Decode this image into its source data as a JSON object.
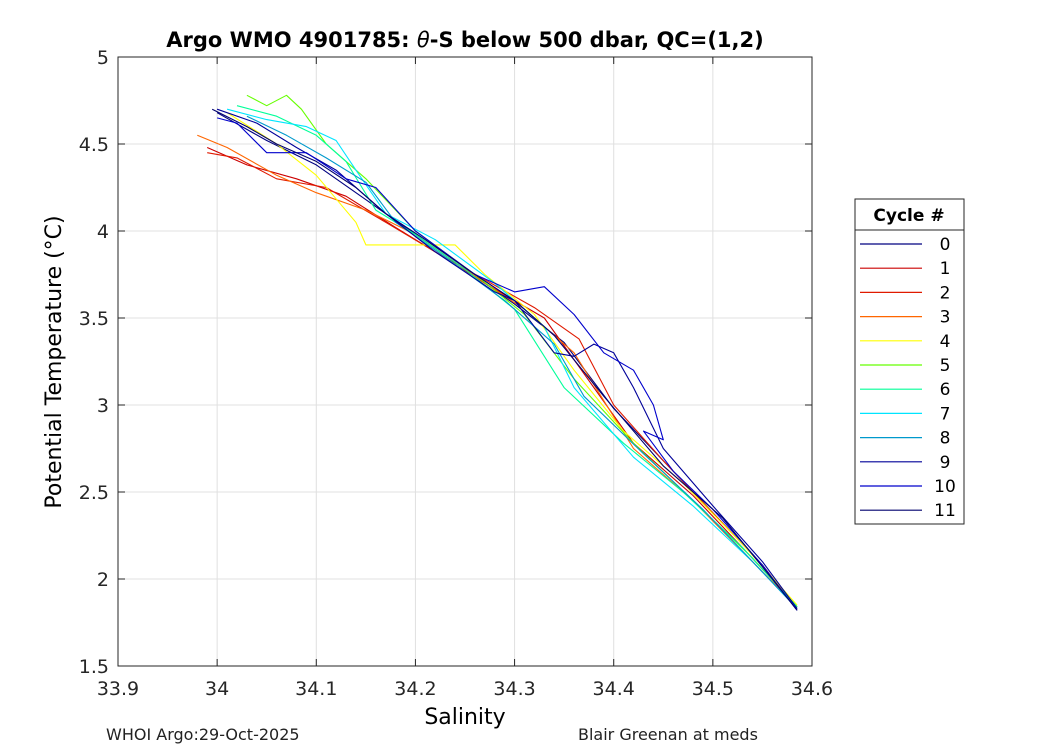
{
  "chart_data": {
    "type": "line",
    "title": "Argo WMO 4901785: θ-S below 500 dbar,  QC=(1,2)",
    "xlabel": "Salinity",
    "ylabel": "Potential Temperature (°C)",
    "xlim": [
      33.9,
      34.6
    ],
    "ylim": [
      1.5,
      5.0
    ],
    "xticks": [
      33.9,
      34.0,
      34.1,
      34.2,
      34.3,
      34.4,
      34.5,
      34.6
    ],
    "xtick_labels": [
      "33.9",
      "34",
      "34.1",
      "34.2",
      "34.3",
      "34.4",
      "34.5",
      "34.6"
    ],
    "yticks": [
      1.5,
      2.0,
      2.5,
      3.0,
      3.5,
      4.0,
      4.5,
      5.0
    ],
    "ytick_labels": [
      "1.5",
      "2",
      "2.5",
      "3",
      "3.5",
      "4",
      "4.5",
      "5"
    ],
    "grid": true,
    "legend": {
      "title": "Cycle #",
      "position": "right"
    },
    "series": [
      {
        "name": "0",
        "color": "#000080",
        "x": [
          34.0,
          34.05,
          34.1,
          34.15,
          34.2,
          34.25,
          34.3,
          34.35,
          34.4,
          34.45,
          34.5,
          34.55,
          34.585
        ],
        "y": [
          4.68,
          4.52,
          4.38,
          4.18,
          3.98,
          3.78,
          3.58,
          3.36,
          2.98,
          2.68,
          2.38,
          2.08,
          1.82
        ]
      },
      {
        "name": "1",
        "color": "#cc0000",
        "x": [
          33.99,
          34.03,
          34.08,
          34.13,
          34.18,
          34.22,
          34.27,
          34.33,
          34.37,
          34.42,
          34.48,
          34.53,
          34.585
        ],
        "y": [
          4.48,
          4.38,
          4.3,
          4.2,
          4.02,
          3.88,
          3.7,
          3.5,
          3.18,
          2.78,
          2.48,
          2.18,
          1.84
        ]
      },
      {
        "name": "2",
        "color": "#e01a00",
        "x": [
          33.99,
          34.02,
          34.06,
          34.11,
          34.17,
          34.22,
          34.27,
          34.32,
          34.365,
          34.4,
          34.45,
          34.5,
          34.55,
          34.585
        ],
        "y": [
          4.45,
          4.42,
          4.3,
          4.25,
          4.05,
          3.88,
          3.72,
          3.56,
          3.38,
          3.0,
          2.68,
          2.38,
          2.08,
          1.83
        ]
      },
      {
        "name": "3",
        "color": "#ff6600",
        "x": [
          33.98,
          34.01,
          34.06,
          34.1,
          34.15,
          34.2,
          34.26,
          34.31,
          34.36,
          34.42,
          34.48,
          34.54,
          34.585
        ],
        "y": [
          4.55,
          4.48,
          4.32,
          4.22,
          4.12,
          3.98,
          3.74,
          3.55,
          3.3,
          2.75,
          2.45,
          2.1,
          1.84
        ]
      },
      {
        "name": "4",
        "color": "#ffff00",
        "x": [
          34.01,
          34.06,
          34.1,
          34.14,
          34.15,
          34.2,
          34.24,
          34.27,
          34.32,
          34.36,
          34.41,
          34.47,
          34.53,
          34.585
        ],
        "y": [
          4.68,
          4.5,
          4.32,
          4.05,
          3.92,
          3.92,
          3.92,
          3.75,
          3.52,
          3.2,
          2.85,
          2.55,
          2.2,
          1.85
        ]
      },
      {
        "name": "5",
        "color": "#66ff00",
        "x": [
          34.03,
          34.05,
          34.07,
          34.085,
          34.11,
          34.15,
          34.2,
          34.26,
          34.31,
          34.36,
          34.42,
          34.48,
          34.54,
          34.585
        ],
        "y": [
          4.78,
          4.72,
          4.78,
          4.7,
          4.5,
          4.3,
          4.0,
          3.75,
          3.52,
          3.15,
          2.78,
          2.45,
          2.12,
          1.84
        ]
      },
      {
        "name": "6",
        "color": "#00ff99",
        "x": [
          34.02,
          34.06,
          34.1,
          34.13,
          34.16,
          34.2,
          34.25,
          34.3,
          34.35,
          34.41,
          34.47,
          34.53,
          34.585
        ],
        "y": [
          4.72,
          4.66,
          4.55,
          4.4,
          4.12,
          3.98,
          3.78,
          3.55,
          3.1,
          2.78,
          2.5,
          2.18,
          1.84
        ]
      },
      {
        "name": "7",
        "color": "#00e5ff",
        "x": [
          34.01,
          34.05,
          34.09,
          34.12,
          34.14,
          34.17,
          34.22,
          34.28,
          34.33,
          34.36,
          34.42,
          34.48,
          34.54,
          34.585
        ],
        "y": [
          4.7,
          4.64,
          4.6,
          4.52,
          4.35,
          4.1,
          3.95,
          3.7,
          3.45,
          3.1,
          2.7,
          2.42,
          2.1,
          1.83
        ]
      },
      {
        "name": "8",
        "color": "#0099cc",
        "x": [
          34.03,
          34.07,
          34.11,
          34.15,
          34.18,
          34.23,
          34.29,
          34.34,
          34.37,
          34.43,
          34.49,
          34.54,
          34.585
        ],
        "y": [
          4.66,
          4.55,
          4.42,
          4.28,
          4.05,
          3.85,
          3.6,
          3.35,
          3.05,
          2.72,
          2.4,
          2.1,
          1.83
        ]
      },
      {
        "name": "9",
        "color": "#000099",
        "x": [
          34.0,
          34.04,
          34.08,
          34.12,
          34.17,
          34.22,
          34.28,
          34.3,
          34.32,
          34.34,
          34.36,
          34.38,
          34.4,
          34.42,
          34.45,
          34.5,
          34.55,
          34.585
        ],
        "y": [
          4.7,
          4.62,
          4.48,
          4.35,
          4.1,
          3.88,
          3.65,
          3.6,
          3.45,
          3.3,
          3.28,
          3.35,
          3.3,
          3.1,
          2.75,
          2.42,
          2.1,
          1.83
        ]
      },
      {
        "name": "10",
        "color": "#0000cc",
        "x": [
          34.0,
          34.02,
          34.05,
          34.09,
          34.13,
          34.16,
          34.2,
          34.26,
          34.3,
          34.33,
          34.36,
          34.39,
          34.42,
          34.44,
          34.45,
          34.43,
          34.46,
          34.5,
          34.55,
          34.585
        ],
        "y": [
          4.65,
          4.62,
          4.45,
          4.45,
          4.3,
          4.25,
          4.0,
          3.75,
          3.65,
          3.68,
          3.52,
          3.3,
          3.2,
          3.0,
          2.8,
          2.85,
          2.62,
          2.4,
          2.08,
          1.82
        ]
      },
      {
        "name": "11",
        "color": "#00006e",
        "x": [
          33.995,
          34.03,
          34.06,
          34.1,
          34.14,
          34.17,
          34.21,
          34.26,
          34.3,
          34.34,
          34.39,
          34.45,
          34.51,
          34.56,
          34.585
        ],
        "y": [
          4.7,
          4.6,
          4.5,
          4.4,
          4.25,
          4.1,
          3.95,
          3.75,
          3.6,
          3.4,
          3.05,
          2.65,
          2.35,
          2.0,
          1.82
        ]
      }
    ]
  },
  "footer": {
    "left": "WHOI Argo:29-Oct-2025",
    "right": "Blair Greenan at meds"
  }
}
